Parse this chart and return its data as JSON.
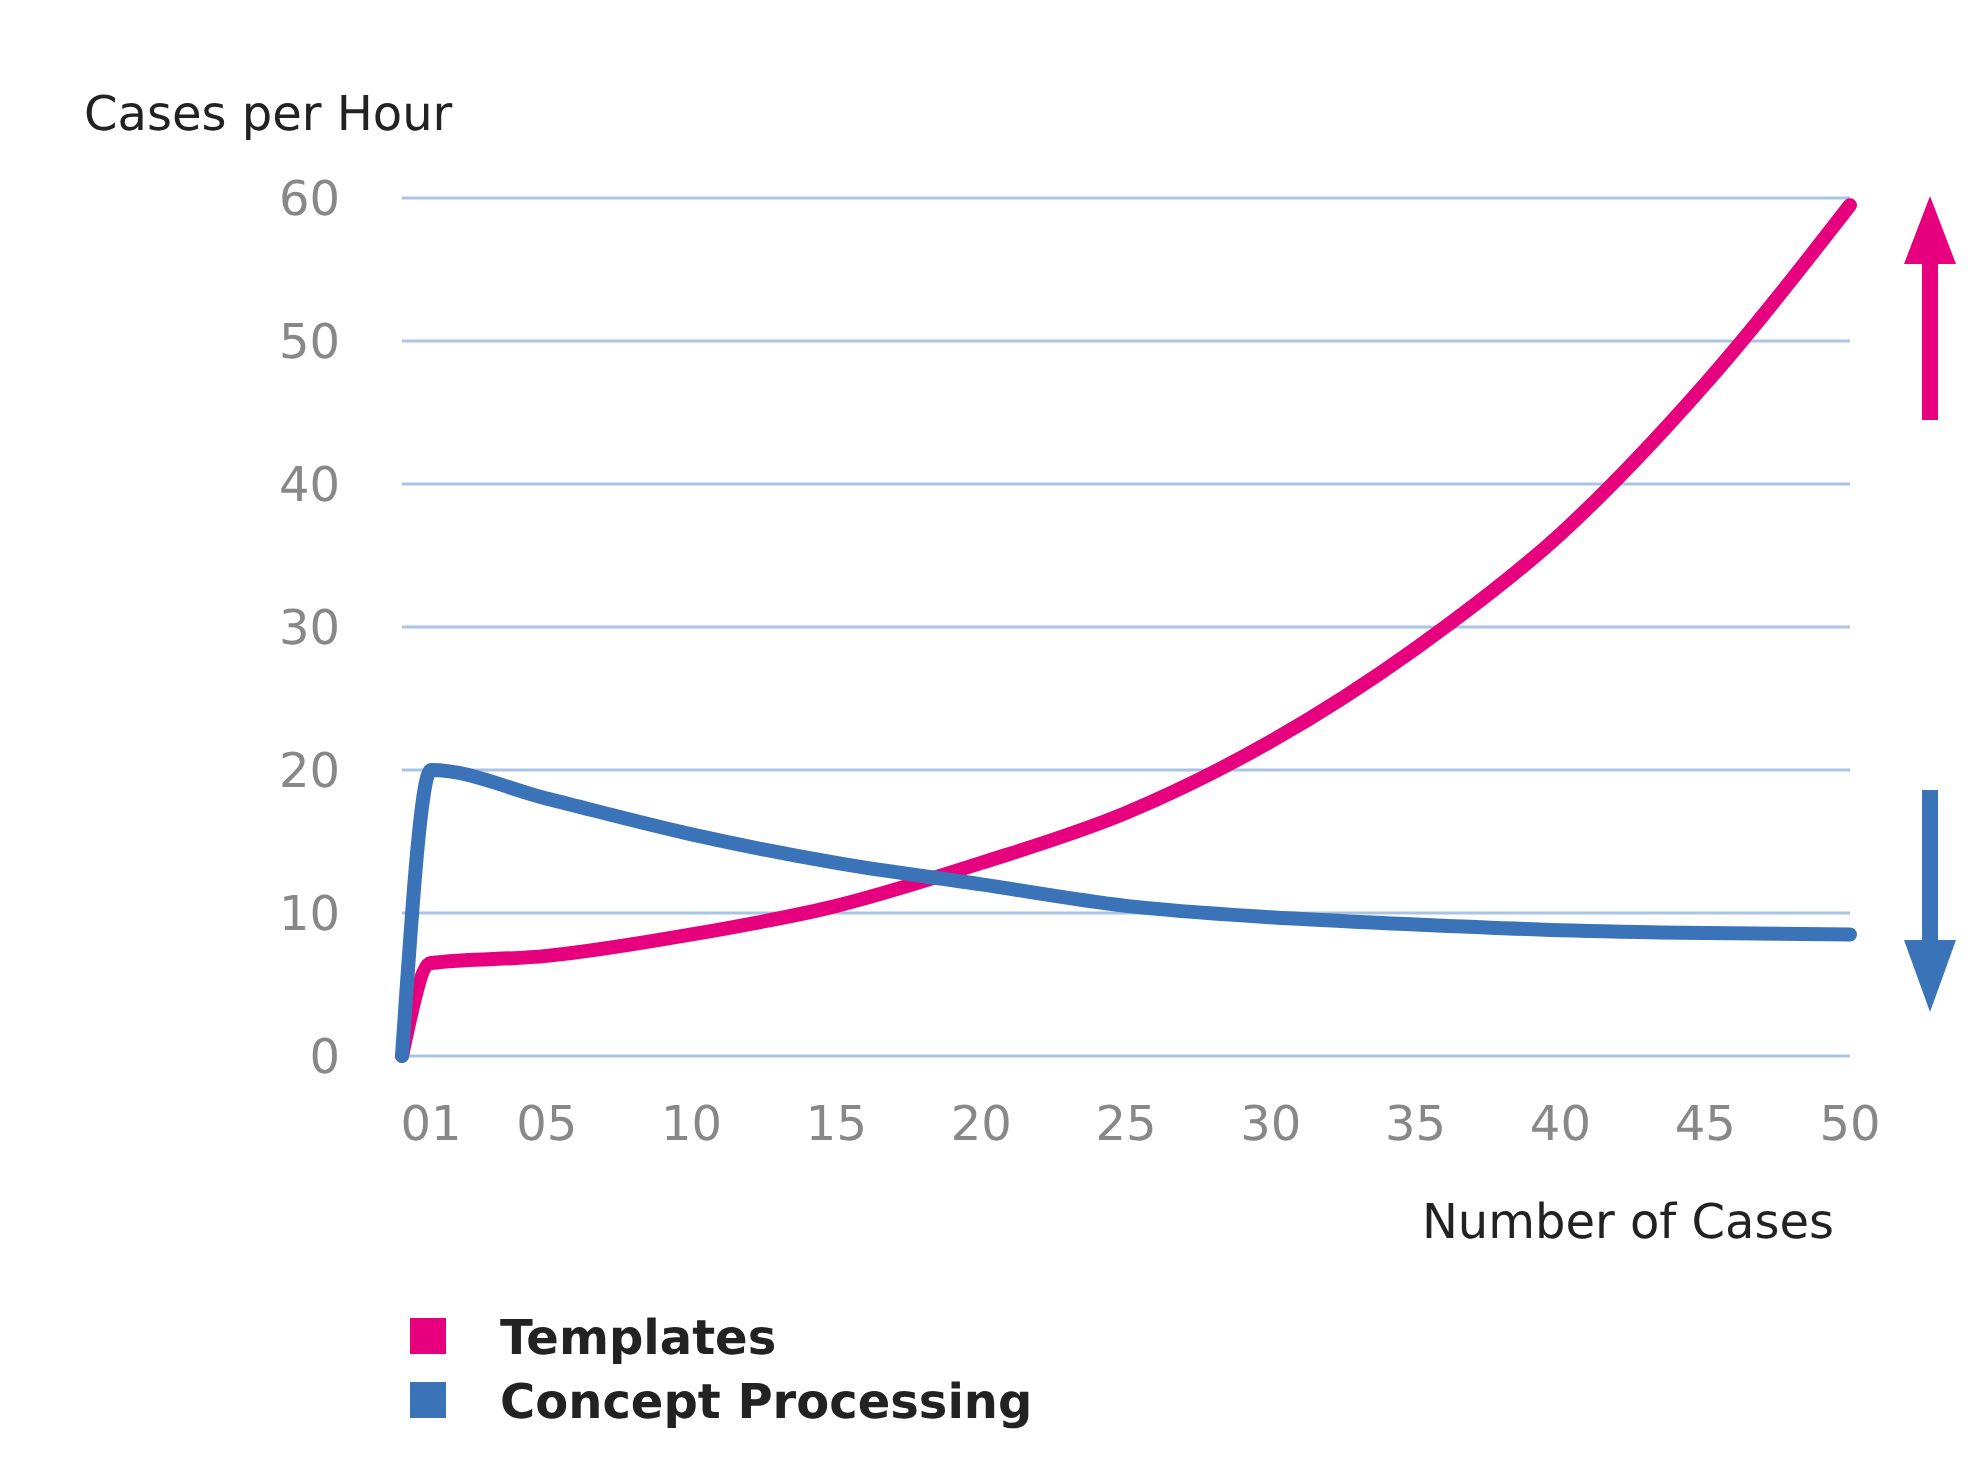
{
  "chart_data": {
    "type": "line",
    "ylabel": "Cases per Hour",
    "xlabel": "Number of Cases",
    "x": [
      0,
      1,
      5,
      10,
      15,
      20,
      25,
      30,
      35,
      40,
      45,
      50
    ],
    "series": [
      {
        "name": "Templates",
        "color": "#e6007e",
        "values": [
          0,
          6.5,
          7,
          8.5,
          10.5,
          13.5,
          17,
          22,
          28.5,
          36.5,
          47,
          59.5
        ]
      },
      {
        "name": "Concept Processing",
        "color": "#3a73b8",
        "values": [
          0,
          20,
          18,
          15.5,
          13.5,
          12,
          10.5,
          9.7,
          9.2,
          8.8,
          8.6,
          8.5
        ]
      }
    ],
    "xlim": [
      0,
      50
    ],
    "xticks": [
      {
        "value": 1,
        "label": "01"
      },
      {
        "value": 5,
        "label": "05"
      },
      10,
      15,
      20,
      25,
      30,
      35,
      40,
      45,
      50
    ],
    "ylim": [
      0,
      60
    ],
    "yticks": [
      0,
      10,
      20,
      30,
      40,
      50,
      60
    ],
    "grid": "y",
    "legend": "bottom left",
    "marker": "none",
    "line_style": "solid"
  }
}
